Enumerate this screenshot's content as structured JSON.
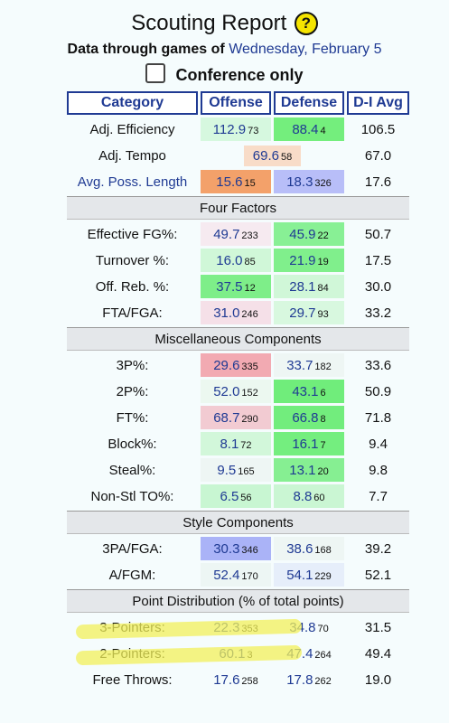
{
  "header": {
    "title": "Scouting Report",
    "help_glyph": "?",
    "through_prefix": "Data through games of",
    "through_date": "Wednesday, February 5",
    "conference_only_label": "Conference only"
  },
  "columns": [
    "Category",
    "Offense",
    "Defense",
    "D-I Avg"
  ],
  "colors": {
    "highlighter": "#f2f05a",
    "header_blue": "#1f3a93",
    "section_gray": "#e4e7ea"
  },
  "sections": [
    {
      "title": "",
      "rows": [
        {
          "label": "Adj. Efficiency",
          "off": "112.9",
          "off_rank": "73",
          "off_bg": "#d6f8df",
          "def": "88.4",
          "def_rank": "4",
          "def_bg": "#74ee7d",
          "avg": "106.5"
        },
        {
          "label": "Adj. Tempo",
          "single": true,
          "off": "69.6",
          "off_rank": "58",
          "off_bg": "#f8dcc8",
          "avg": "67.0"
        },
        {
          "label": "Avg. Poss. Length",
          "label_blue": true,
          "off": "15.6",
          "off_rank": "15",
          "off_bg": "#f3a16a",
          "def": "18.3",
          "def_rank": "326",
          "def_bg": "#b8bef8",
          "avg": "17.6"
        }
      ]
    },
    {
      "title": "Four Factors",
      "rows": [
        {
          "label": "Effective FG%:",
          "off": "49.7",
          "off_rank": "233",
          "off_bg": "#f6eaf0",
          "def": "45.9",
          "def_rank": "22",
          "def_bg": "#88f095",
          "avg": "50.7"
        },
        {
          "label": "Turnover %:",
          "off": "16.0",
          "off_rank": "85",
          "off_bg": "#d0f7d8",
          "def": "21.9",
          "def_rank": "19",
          "def_bg": "#80ef8c",
          "avg": "17.5"
        },
        {
          "label": "Off. Reb. %:",
          "off": "37.5",
          "off_rank": "12",
          "off_bg": "#7eee89",
          "def": "28.1",
          "def_rank": "84",
          "def_bg": "#d0f7d8",
          "avg": "30.0"
        },
        {
          "label": "FTA/FGA:",
          "off": "31.0",
          "off_rank": "246",
          "off_bg": "#f5e0e8",
          "def": "29.7",
          "def_rank": "93",
          "def_bg": "#d8f8df",
          "avg": "33.2"
        }
      ]
    },
    {
      "title": "Miscellaneous Components",
      "rows": [
        {
          "label": "3P%:",
          "off": "29.6",
          "off_rank": "335",
          "off_bg": "#f2aab2",
          "def": "33.7",
          "def_rank": "182",
          "def_bg": "#eef6f4",
          "avg": "33.6"
        },
        {
          "label": "2P%:",
          "off": "52.0",
          "off_rank": "152",
          "off_bg": "#ecf8f0",
          "def": "43.1",
          "def_rank": "6",
          "def_bg": "#70ed7b",
          "avg": "50.9"
        },
        {
          "label": "FT%:",
          "off": "68.7",
          "off_rank": "290",
          "off_bg": "#f2cbd2",
          "def": "66.8",
          "def_rank": "8",
          "def_bg": "#72ed7d",
          "avg": "71.8"
        },
        {
          "label": "Block%:",
          "off": "8.1",
          "off_rank": "72",
          "off_bg": "#d2f7da",
          "def": "16.1",
          "def_rank": "7",
          "def_bg": "#74ee7f",
          "avg": "9.4"
        },
        {
          "label": "Steal%:",
          "off": "9.5",
          "off_rank": "165",
          "off_bg": "#eef6f4",
          "def": "13.1",
          "def_rank": "20",
          "def_bg": "#86ef92",
          "avg": "9.8"
        },
        {
          "label": "Non-Stl TO%:",
          "off": "6.5",
          "off_rank": "56",
          "off_bg": "#c8f6d2",
          "def": "8.8",
          "def_rank": "60",
          "def_bg": "#caf6d3",
          "avg": "7.7"
        }
      ]
    },
    {
      "title": "Style Components",
      "rows": [
        {
          "label": "3PA/FGA:",
          "off": "30.3",
          "off_rank": "346",
          "off_bg": "#aab3f7",
          "def": "38.6",
          "def_rank": "168",
          "def_bg": "#eef6f4",
          "avg": "39.2"
        },
        {
          "label": "A/FGM:",
          "off": "52.4",
          "off_rank": "170",
          "off_bg": "#edf6f4",
          "def": "54.1",
          "def_rank": "229",
          "def_bg": "#e6eefa",
          "avg": "52.1"
        }
      ]
    },
    {
      "title": "Point Distribution (% of total points)",
      "rows": [
        {
          "label": "3-Pointers:",
          "off": "22.3",
          "off_rank": "353",
          "off_bg": "transparent",
          "def": "34.8",
          "def_rank": "70",
          "def_bg": "transparent",
          "avg": "31.5",
          "highlighted": true
        },
        {
          "label": "2-Pointers:",
          "off": "60.1",
          "off_rank": "3",
          "off_bg": "transparent",
          "def": "47.4",
          "def_rank": "264",
          "def_bg": "transparent",
          "avg": "49.4",
          "highlighted": true
        },
        {
          "label": "Free Throws:",
          "off": "17.6",
          "off_rank": "258",
          "off_bg": "transparent",
          "def": "17.8",
          "def_rank": "262",
          "def_bg": "transparent",
          "avg": "19.0"
        }
      ]
    }
  ]
}
